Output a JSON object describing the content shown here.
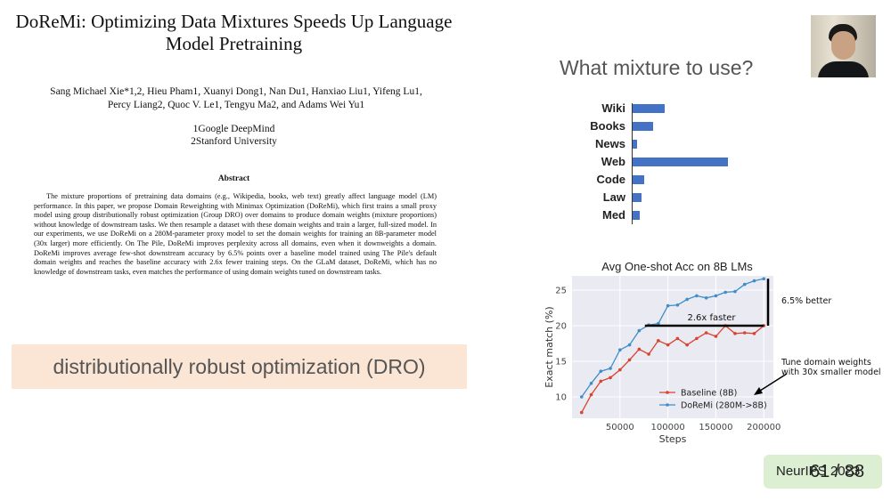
{
  "paper": {
    "title": "DoReMi: Optimizing Data Mixtures Speeds Up Language Model Pretraining",
    "authors_line1": "Sang Michael Xie*1,2, Hieu Pham1, Xuanyi Dong1, Nan Du1, Hanxiao Liu1, Yifeng Lu1,",
    "authors_line2": "Percy Liang2, Quoc V. Le1, Tengyu Ma2, and Adams Wei Yu1",
    "affiliation1": "1Google DeepMind",
    "affiliation2": "2Stanford University",
    "abstract_heading": "Abstract",
    "abstract": "The mixture proportions of pretraining data domains (e.g., Wikipedia, books, web text) greatly affect language model (LM) performance. In this paper, we propose Domain Reweighting with Minimax Optimization (DoReMi), which first trains a small proxy model using group distributionally robust optimization (Group DRO) over domains to produce domain weights (mixture proportions) without knowledge of downstream tasks. We then resample a dataset with these domain weights and train a larger, full-sized model. In our experiments, we use DoReMi on a 280M-parameter proxy model to set the domain weights for training an 8B-parameter model (30x larger) more efficiently. On The Pile, DoReMi improves perplexity across all domains, even when it downweights a domain. DoReMi improves average few-shot downstream accuracy by 6.5% points over a baseline model trained using The Pile's default domain weights and reaches the baseline accuracy with 2.6x fewer training steps. On the GLaM dataset, DoReMi, which has no knowledge of downstream tasks, even matches the performance of using domain weights tuned on downstream tasks."
  },
  "banner": {
    "text": "distributionally robust optimization (DRO)"
  },
  "slide": {
    "question": "What mixture to use?"
  },
  "webcam": {
    "label": "presenter-video"
  },
  "mixture_chart": {
    "categories": [
      "Wiki",
      "Books",
      "News",
      "Web",
      "Code",
      "Law",
      "Med"
    ],
    "values": [
      0.14,
      0.09,
      0.02,
      0.41,
      0.05,
      0.04,
      0.03
    ],
    "color": "#4472c4"
  },
  "chart_data": {
    "type": "line",
    "title": "Avg One-shot Acc on 8B LMs",
    "xlabel": "Steps",
    "ylabel": "Exact match (%)",
    "xlim": [
      0,
      210000
    ],
    "ylim": [
      7,
      27
    ],
    "xticks": [
      50000,
      100000,
      150000,
      200000
    ],
    "yticks": [
      10,
      15,
      20,
      25
    ],
    "grid": true,
    "legend_position": "lower-right",
    "series": [
      {
        "name": "Baseline (8B)",
        "color": "#d9432f",
        "x": [
          10000,
          20000,
          30000,
          40000,
          50000,
          60000,
          70000,
          80000,
          90000,
          100000,
          110000,
          120000,
          130000,
          140000,
          150000,
          160000,
          170000,
          180000,
          190000,
          200000
        ],
        "y": [
          7.8,
          10.3,
          12.2,
          12.7,
          13.8,
          15.2,
          16.7,
          16.0,
          17.9,
          17.3,
          18.2,
          17.3,
          18.2,
          19.0,
          18.5,
          20.0,
          18.9,
          19.0,
          18.9,
          20.0
        ]
      },
      {
        "name": "DoReMi (280M->8B)",
        "color": "#3f8ec9",
        "x": [
          10000,
          20000,
          30000,
          40000,
          50000,
          60000,
          70000,
          80000,
          90000,
          100000,
          110000,
          120000,
          130000,
          140000,
          150000,
          160000,
          170000,
          180000,
          190000,
          200000
        ],
        "y": [
          10.0,
          11.9,
          13.6,
          14.0,
          16.6,
          17.3,
          19.3,
          20.1,
          20.3,
          22.8,
          22.9,
          23.7,
          24.2,
          23.9,
          24.2,
          24.7,
          24.8,
          25.8,
          26.3,
          26.6
        ]
      }
    ],
    "annotations": {
      "faster": "2.6x faster",
      "better": "6.5% better",
      "tune_line1": "Tune domain weights",
      "tune_line2": "with 30x smaller model"
    }
  },
  "venue": "NeurIPS 2023",
  "page": "61 / 88"
}
